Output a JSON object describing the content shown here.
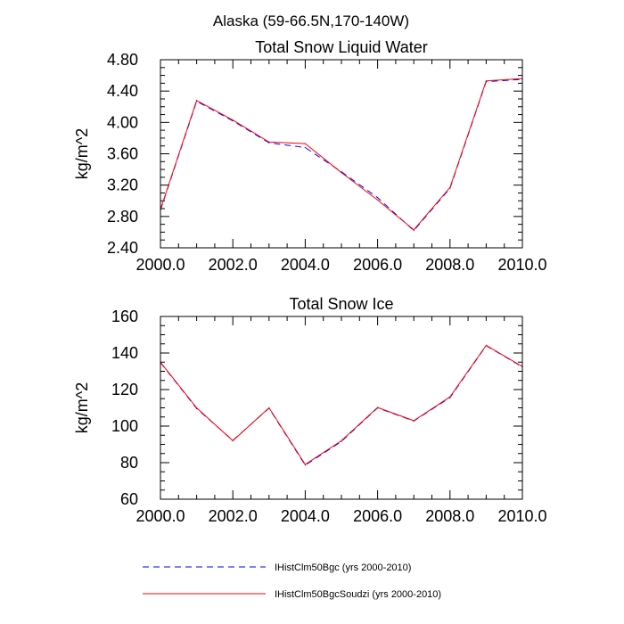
{
  "figure": {
    "title": "Alaska (59-66.5N,170-140W)"
  },
  "legend": {
    "position": "bottom",
    "entries": [
      {
        "label": "IHistClm50Bgc (yrs 2000-2010)",
        "color": "#0000ff",
        "style": "dashed"
      },
      {
        "label": "IHistClm50BgcSoudzi (yrs 2000-2010)",
        "color": "#ff0000",
        "style": "solid"
      }
    ]
  },
  "chart_data": [
    {
      "type": "line",
      "title": "Total Snow Liquid Water",
      "xlabel": "",
      "ylabel": "kg/m^2",
      "xlim": [
        2000,
        2010
      ],
      "ylim": [
        2.4,
        4.8
      ],
      "xticks": [
        2000,
        2002,
        2004,
        2006,
        2008,
        2010
      ],
      "xtick_labels": [
        "2000.0",
        "2002.0",
        "2004.0",
        "2006.0",
        "2008.0",
        "2010.0"
      ],
      "yticks": [
        2.4,
        2.8,
        3.2,
        3.6,
        4.0,
        4.4,
        4.8
      ],
      "ytick_labels": [
        "2.40",
        "2.80",
        "3.20",
        "3.60",
        "4.00",
        "4.40",
        "4.80"
      ],
      "x": [
        2000,
        2001,
        2002,
        2003,
        2004,
        2005,
        2006,
        2007,
        2008,
        2009,
        2010
      ],
      "series": [
        {
          "name": "IHistClm50Bgc (yrs 2000-2010)",
          "color": "#0000ff",
          "style": "dashed",
          "values": [
            2.88,
            4.27,
            4.02,
            3.74,
            3.68,
            3.37,
            3.04,
            2.62,
            3.16,
            4.52,
            4.55
          ]
        },
        {
          "name": "IHistClm50BgcSoudzi (yrs 2000-2010)",
          "color": "#ff0000",
          "style": "solid",
          "values": [
            2.89,
            4.28,
            4.03,
            3.75,
            3.73,
            3.36,
            3.01,
            2.63,
            3.17,
            4.53,
            4.56
          ]
        }
      ]
    },
    {
      "type": "line",
      "title": "Total Snow Ice",
      "xlabel": "",
      "ylabel": "kg/m^2",
      "xlim": [
        2000,
        2010
      ],
      "ylim": [
        60,
        160
      ],
      "xticks": [
        2000,
        2002,
        2004,
        2006,
        2008,
        2010
      ],
      "xtick_labels": [
        "2000.0",
        "2002.0",
        "2004.0",
        "2006.0",
        "2008.0",
        "2010.0"
      ],
      "yticks": [
        60,
        80,
        100,
        120,
        140,
        160
      ],
      "ytick_labels": [
        "60",
        "80",
        "100",
        "120",
        "140",
        "160"
      ],
      "x": [
        2000,
        2001,
        2002,
        2003,
        2004,
        2005,
        2006,
        2007,
        2008,
        2009,
        2010
      ],
      "series": [
        {
          "name": "IHistClm50Bgc (yrs 2000-2010)",
          "color": "#0000ff",
          "style": "dashed",
          "values": [
            134.8,
            109.6,
            92.2,
            109.8,
            78.6,
            91.6,
            110.0,
            102.8,
            115.6,
            144.0,
            132.4
          ]
        },
        {
          "name": "IHistClm50BgcSoudzi (yrs 2000-2010)",
          "color": "#ff0000",
          "style": "solid",
          "values": [
            135.0,
            110.0,
            92.0,
            110.0,
            79.0,
            92.0,
            110.2,
            103.0,
            116.0,
            144.2,
            132.6
          ]
        }
      ]
    }
  ]
}
